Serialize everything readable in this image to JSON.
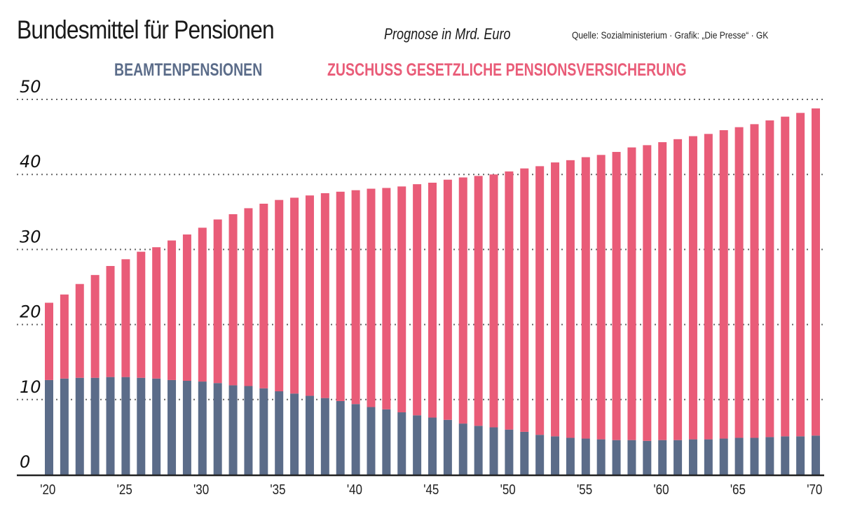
{
  "header": {
    "title": "Bundesmittel für Pensionen",
    "subtitle": "Prognose in Mrd. Euro",
    "source": "Quelle: Sozialministerium · Grafik: „Die Presse“ · GK"
  },
  "colors": {
    "beamten": "#5B6C89",
    "zuschuss": "#E95C78",
    "grid": "#666666",
    "axis": "#222222"
  },
  "chart_data": {
    "type": "bar",
    "stacked": true,
    "title": "Bundesmittel für Pensionen",
    "subtitle": "Prognose in Mrd. Euro",
    "xlabel": "",
    "ylabel": "",
    "ylim": [
      0,
      50
    ],
    "yticks": [
      0,
      10,
      20,
      30,
      40,
      50
    ],
    "ytick_labels": [
      "0",
      "10",
      "20",
      "30",
      "40",
      "50"
    ],
    "grid": true,
    "legend_position": "top",
    "categories": [
      "2020",
      "2021",
      "2022",
      "2023",
      "2024",
      "2025",
      "2026",
      "2027",
      "2028",
      "2029",
      "2030",
      "2031",
      "2032",
      "2033",
      "2034",
      "2035",
      "2036",
      "2037",
      "2038",
      "2039",
      "2040",
      "2041",
      "2042",
      "2043",
      "2044",
      "2045",
      "2046",
      "2047",
      "2048",
      "2049",
      "2050",
      "2051",
      "2052",
      "2053",
      "2054",
      "2055",
      "2056",
      "2057",
      "2058",
      "2059",
      "2060",
      "2061",
      "2062",
      "2063",
      "2064",
      "2065",
      "2066",
      "2067",
      "2068",
      "2069",
      "2070"
    ],
    "xtick_labels": [
      {
        "index": 0,
        "label": "'20"
      },
      {
        "index": 5,
        "label": "'25"
      },
      {
        "index": 10,
        "label": "'30"
      },
      {
        "index": 15,
        "label": "'35"
      },
      {
        "index": 20,
        "label": "'40"
      },
      {
        "index": 25,
        "label": "'45"
      },
      {
        "index": 30,
        "label": "'50"
      },
      {
        "index": 35,
        "label": "'55"
      },
      {
        "index": 40,
        "label": "'60"
      },
      {
        "index": 45,
        "label": "'65"
      },
      {
        "index": 50,
        "label": "'70"
      }
    ],
    "series": [
      {
        "name": "BEAMTENPENSIONEN",
        "color": "#5B6C89",
        "values": [
          12.6,
          12.8,
          12.9,
          12.9,
          13.0,
          13.0,
          12.9,
          12.8,
          12.6,
          12.5,
          12.4,
          12.2,
          11.9,
          11.8,
          11.5,
          11.1,
          10.8,
          10.5,
          10.2,
          9.8,
          9.4,
          9.0,
          8.7,
          8.3,
          7.9,
          7.6,
          7.3,
          6.8,
          6.5,
          6.3,
          6.0,
          5.7,
          5.3,
          5.1,
          4.9,
          4.8,
          4.7,
          4.6,
          4.6,
          4.5,
          4.6,
          4.6,
          4.7,
          4.7,
          4.8,
          4.9,
          4.9,
          5.0,
          5.1,
          5.1,
          5.2
        ]
      },
      {
        "name": "ZUSCHUSS GESETZLICHE PENSIONSVERSICHERUNG",
        "color": "#E95C78",
        "values": [
          10.3,
          11.2,
          12.5,
          13.7,
          14.8,
          15.7,
          16.8,
          17.5,
          18.6,
          19.5,
          20.5,
          21.8,
          22.8,
          23.7,
          24.6,
          25.5,
          26.1,
          26.7,
          27.3,
          27.9,
          28.5,
          29.1,
          29.5,
          30.1,
          30.8,
          31.3,
          32.0,
          32.8,
          33.3,
          33.7,
          34.4,
          35.1,
          35.8,
          36.5,
          37.0,
          37.5,
          37.9,
          38.4,
          39.0,
          39.4,
          39.7,
          40.1,
          40.4,
          40.7,
          41.1,
          41.4,
          41.8,
          42.2,
          42.6,
          43.1,
          43.6
        ]
      }
    ]
  },
  "legend": {
    "beamten_label": "BEAMTENPENSIONEN",
    "zuschuss_label": "ZUSCHUSS GESETZLICHE PENSIONSVERSICHERUNG"
  }
}
